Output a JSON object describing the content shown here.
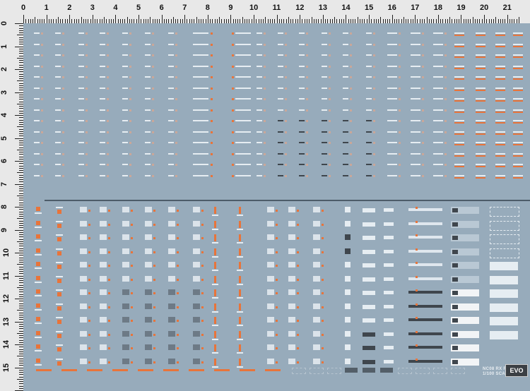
{
  "ruler": {
    "top_labels": [
      "0",
      "1",
      "2",
      "3",
      "4",
      "5",
      "6",
      "7",
      "8",
      "9",
      "10",
      "11",
      "12",
      "13",
      "14",
      "15",
      "16",
      "17",
      "18",
      "19",
      "20",
      "21"
    ],
    "left_labels": [
      "0",
      "1",
      "2",
      "3",
      "4",
      "5",
      "6",
      "7",
      "8",
      "9",
      "10",
      "11",
      "12",
      "13",
      "14",
      "15"
    ]
  },
  "logo": {
    "line1": "NC08 RX FOR",
    "line2": "1/100 SCALE",
    "brand": "EVO"
  },
  "colors": {
    "sheet": "#97abbb",
    "decal_white": "#e6edf2",
    "decal_orange": "#e8743a",
    "decal_dark": "#3f464d"
  }
}
